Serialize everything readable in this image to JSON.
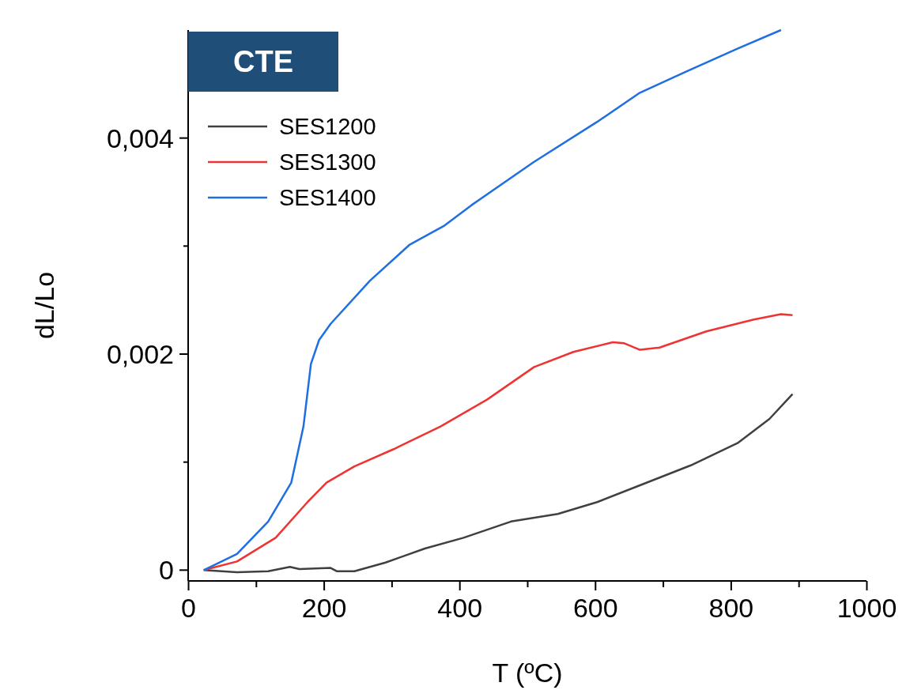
{
  "chart_data": {
    "type": "line",
    "title": "CTE",
    "xlabel": "T (ºC)",
    "ylabel": "dL/Lo",
    "xlim": [
      0,
      1000
    ],
    "ylim": [
      -0.0001,
      0.005
    ],
    "xticks": [
      0,
      {
        "value": 100,
        "label": null
      },
      200,
      {
        "value": 300,
        "label": null
      },
      400,
      {
        "value": 500,
        "label": null
      },
      600,
      {
        "value": 700,
        "label": null
      },
      800,
      {
        "value": 900,
        "label": null
      },
      1000
    ],
    "yticks": [
      {
        "value": 0,
        "label": "0"
      },
      {
        "value": 0.001,
        "label": null
      },
      {
        "value": 0.002,
        "label": "0,002"
      },
      {
        "value": 0.003,
        "label": null
      },
      {
        "value": 0.004,
        "label": "0,004"
      }
    ],
    "grid": false,
    "legend": "top left",
    "marker": "none",
    "line_style": "solid",
    "series": [
      {
        "name": "SES1200",
        "color": "#404040",
        "x": [
          23,
          72,
          118,
          150,
          164,
          210,
          219,
          245,
          291,
          349,
          406,
          476,
          545,
          603,
          672,
          741,
          811,
          857,
          891
        ],
        "values": [
          0,
          -2e-05,
          -1e-05,
          3e-05,
          1e-05,
          2e-05,
          -1e-05,
          -1e-05,
          7e-05,
          0.0002,
          0.0003,
          0.00045,
          0.00052,
          0.00063,
          0.0008,
          0.00097,
          0.00118,
          0.0014,
          0.00163
        ]
      },
      {
        "name": "SES1300",
        "color": "#ee3333",
        "x": [
          23,
          72,
          129,
          176,
          204,
          245,
          303,
          372,
          441,
          510,
          568,
          626,
          643,
          666,
          695,
          764,
          834,
          874,
          891
        ],
        "values": [
          0,
          8e-05,
          0.0003,
          0.00063,
          0.00081,
          0.00096,
          0.00112,
          0.00133,
          0.00158,
          0.00188,
          0.00202,
          0.00211,
          0.0021,
          0.00204,
          0.00206,
          0.00221,
          0.00232,
          0.00237,
          0.00236
        ]
      },
      {
        "name": "SES1400",
        "color": "#1f6fe0",
        "x": [
          23,
          72,
          118,
          152,
          170,
          181,
          193,
          210,
          268,
          326,
          378,
          418,
          510,
          603,
          666,
          736,
          811,
          874
        ],
        "values": [
          0,
          0.00015,
          0.00045,
          0.00081,
          0.00133,
          0.00191,
          0.00213,
          0.00228,
          0.00268,
          0.00301,
          0.00319,
          0.00338,
          0.00378,
          0.00415,
          0.00442,
          0.00462,
          0.00483,
          0.005
        ]
      }
    ]
  }
}
